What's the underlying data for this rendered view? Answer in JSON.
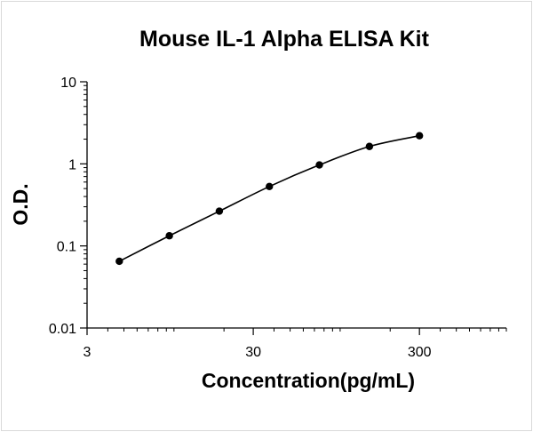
{
  "chart_data": {
    "type": "scatter",
    "title": "Mouse IL-1 Alpha ELISA Kit",
    "xlabel": "Concentration(pg/mL)",
    "ylabel": "O.D.",
    "x_scale": "log",
    "y_scale": "log",
    "xlim": [
      3,
      1000
    ],
    "ylim": [
      0.01,
      10
    ],
    "x_ticks": [
      3,
      30,
      300
    ],
    "x_tick_labels": [
      "3",
      "30",
      "300"
    ],
    "y_ticks": [
      0.01,
      0.1,
      1,
      10
    ],
    "y_tick_labels": [
      "0.01",
      "0.1",
      "1",
      "10"
    ],
    "grid": false,
    "legend": "none",
    "series": [
      {
        "x": [
          4.69,
          9.38,
          18.75,
          37.5,
          75,
          150,
          300
        ],
        "y": [
          0.065,
          0.133,
          0.265,
          0.53,
          0.97,
          1.63,
          2.2
        ],
        "marker_color": "#000000",
        "line_color": "#000000",
        "fit_line": "smooth"
      }
    ]
  }
}
